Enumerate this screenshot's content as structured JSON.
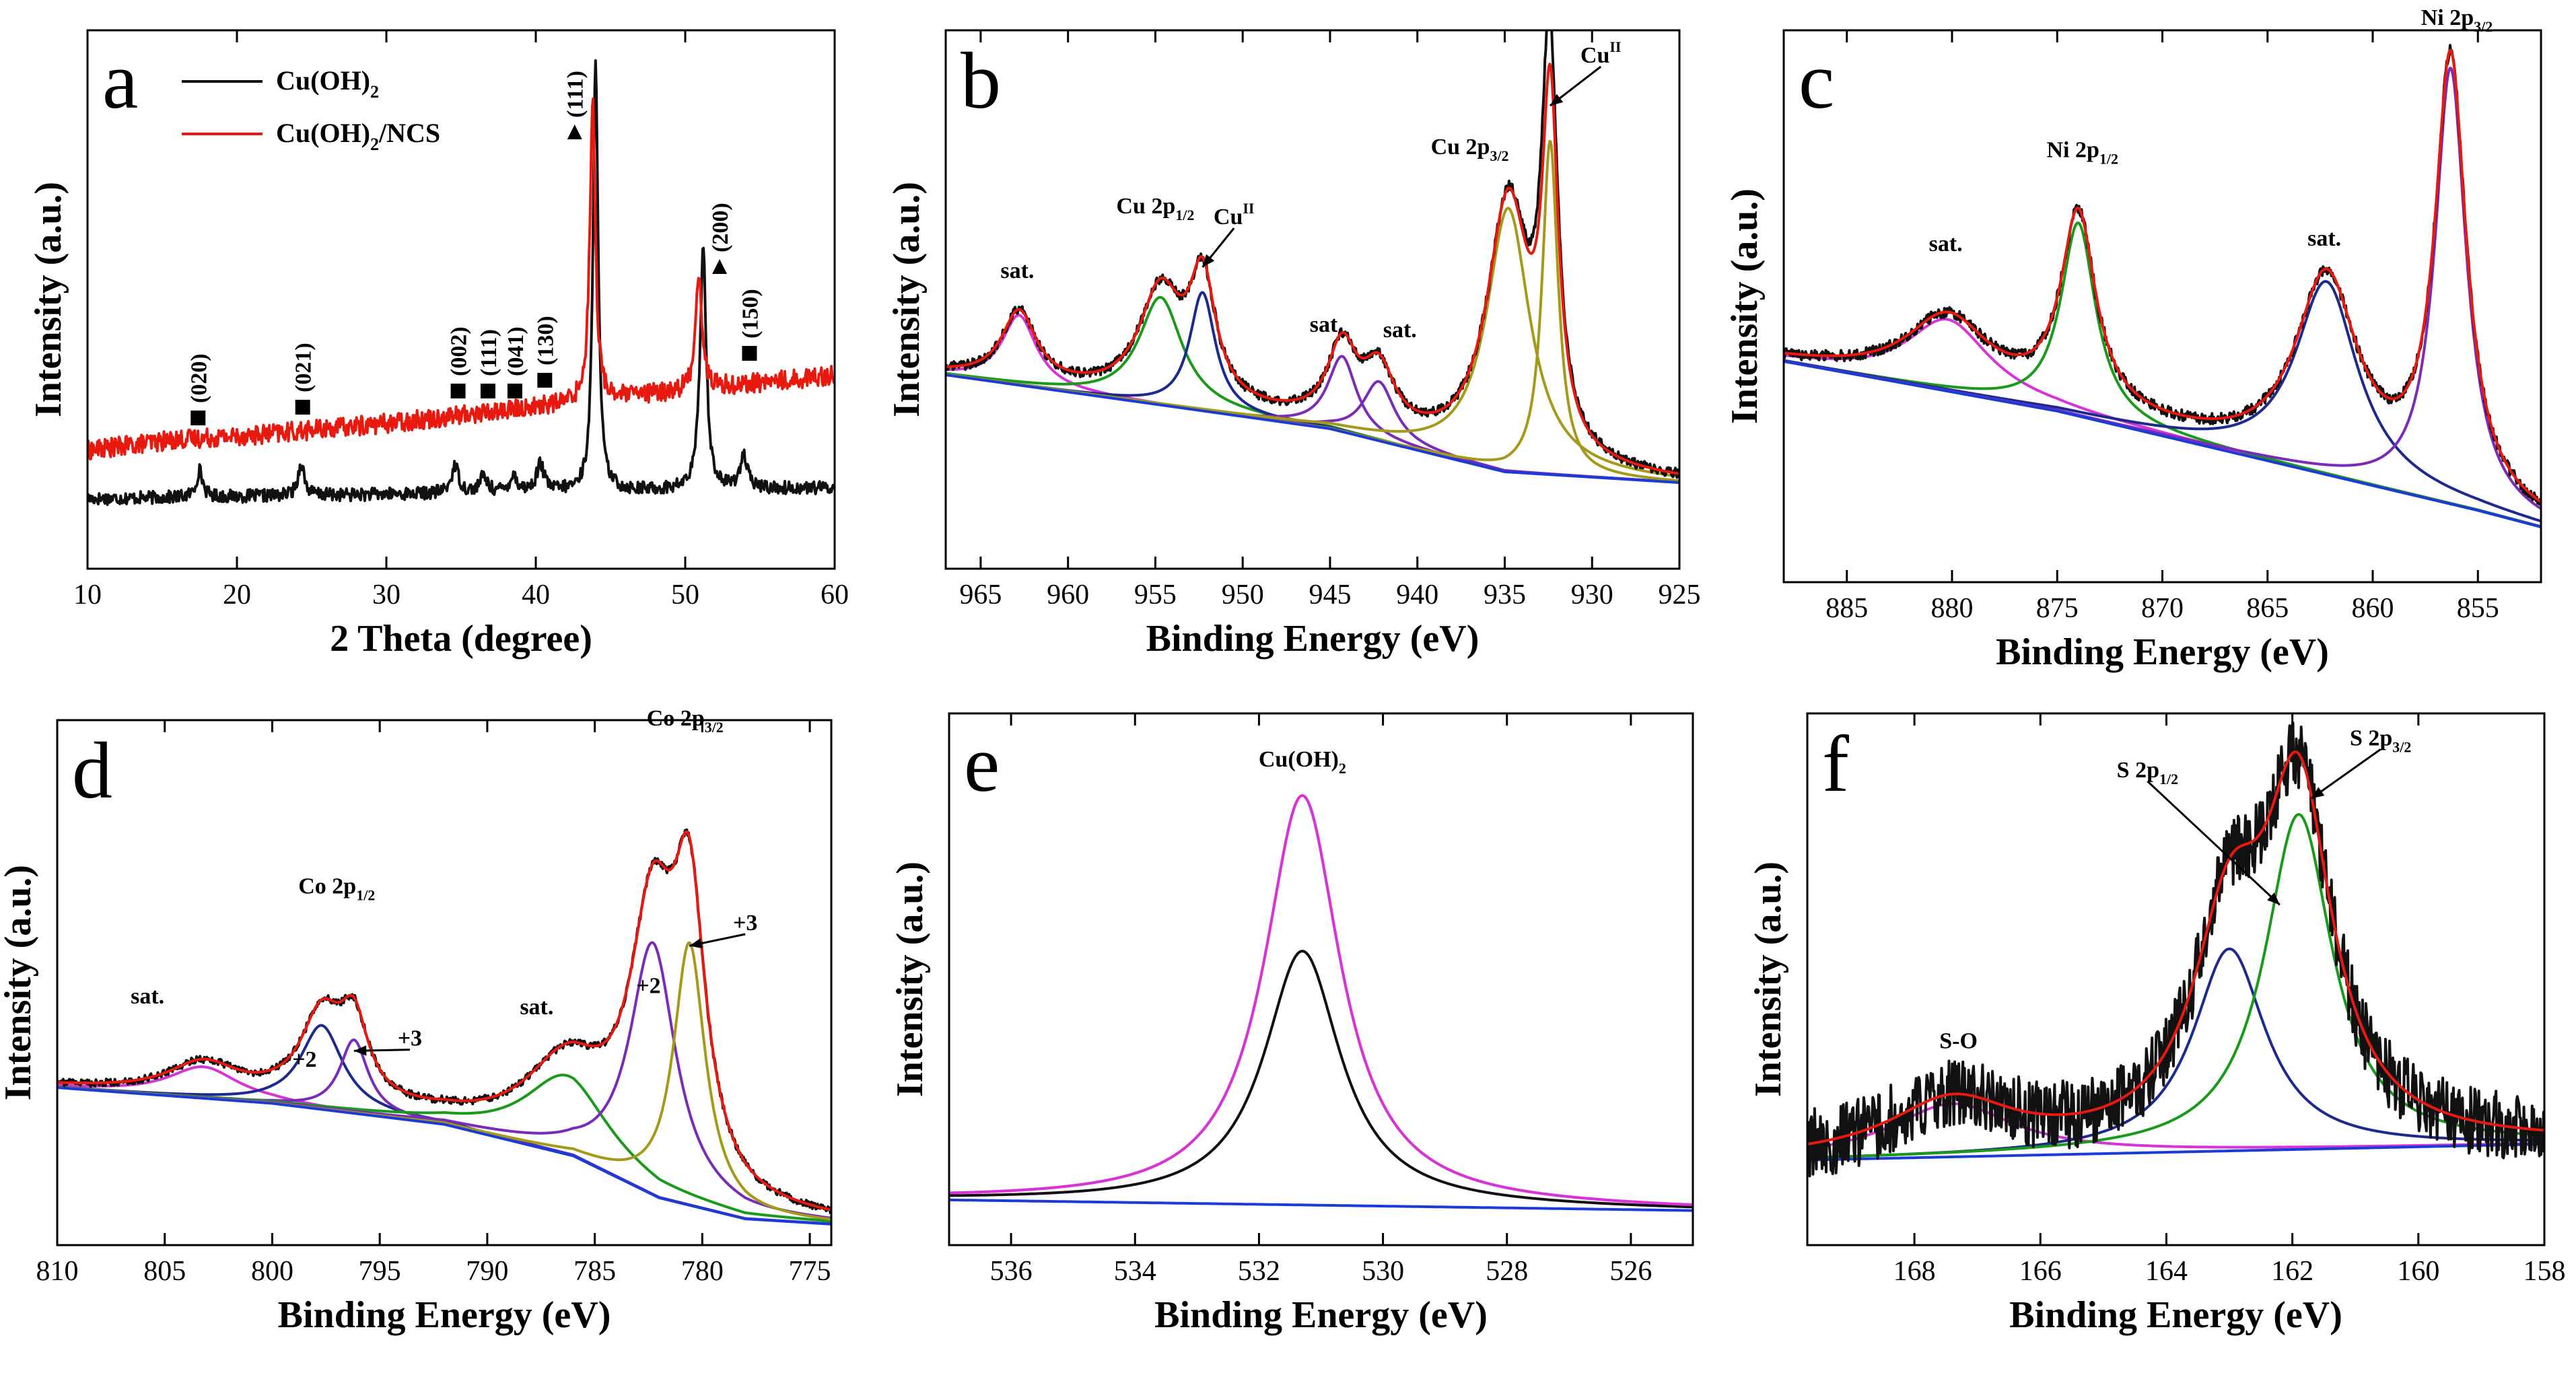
{
  "colors": {
    "black": "#111111",
    "red": "#e8190f",
    "green": "#1a9a1a",
    "navy": "#1c2a8f",
    "magenta": "#d634d6",
    "purple": "#7a2bb8",
    "olive": "#a39a1a",
    "blue": "#1a3bd6"
  },
  "chart_data": [
    {
      "id": "a",
      "type": "line",
      "panel_label": "a",
      "xlabel": "2 Theta (degree)",
      "ylabel": "Intensity (a.u.)",
      "xlim": [
        10,
        60
      ],
      "ylim": [
        0,
        100
      ],
      "x_reversed": false,
      "xticks": [
        10,
        20,
        30,
        40,
        50,
        60
      ],
      "legend": [
        "Cu(OH)2",
        "Cu(OH)2/NCS"
      ],
      "legend_display": [
        [
          "Cu(OH)",
          "2",
          ""
        ],
        [
          "Cu(OH)",
          "2",
          "/NCS"
        ]
      ],
      "series": [
        {
          "name": "Cu(OH)2",
          "color": "black",
          "noise": 1.2,
          "baseline": [
            [
              10,
              13
            ],
            [
              60,
              15
            ]
          ],
          "peaks": [
            [
              17.5,
              5,
              0.25
            ],
            [
              24.3,
              6,
              0.25
            ],
            [
              34.6,
              5,
              0.3
            ],
            [
              36.5,
              3,
              0.3
            ],
            [
              38.5,
              3,
              0.3
            ],
            [
              40.3,
              5,
              0.3
            ],
            [
              44.0,
              81,
              0.2
            ],
            [
              51.2,
              45,
              0.25
            ],
            [
              53.9,
              6,
              0.3
            ]
          ]
        },
        {
          "name": "Cu(OH)2/NCS",
          "color": "red",
          "noise": 1.8,
          "baseline": [
            [
              10,
              22
            ],
            [
              16,
              24
            ],
            [
              22,
              25
            ],
            [
              30,
              27
            ],
            [
              40,
              30
            ],
            [
              50,
              33
            ],
            [
              60,
              36
            ]
          ],
          "peaks": [
            [
              43.8,
              56,
              0.22
            ],
            [
              50.9,
              22,
              0.25
            ]
          ]
        }
      ],
      "annotations": [
        {
          "label": "(020)",
          "x": 17.4,
          "y": 28,
          "marker": "square"
        },
        {
          "label": "(021)",
          "x": 24.4,
          "y": 30,
          "marker": "square"
        },
        {
          "label": "(002)",
          "x": 34.8,
          "y": 33,
          "marker": "square"
        },
        {
          "label": "(111)",
          "x": 36.8,
          "y": 33,
          "marker": "square"
        },
        {
          "label": "(041)",
          "x": 38.6,
          "y": 33,
          "marker": "square"
        },
        {
          "label": "(130)",
          "x": 40.6,
          "y": 35,
          "marker": "square"
        },
        {
          "label": "(111)",
          "x": 42.6,
          "y": 81,
          "marker": "triangle"
        },
        {
          "label": "(200)",
          "x": 52.3,
          "y": 56,
          "marker": "triangle"
        },
        {
          "label": "(150)",
          "x": 54.3,
          "y": 40,
          "marker": "square"
        }
      ]
    },
    {
      "id": "b",
      "type": "line",
      "panel_label": "b",
      "xlabel": "Binding Energy (eV)",
      "ylabel": "Intensity (a.u.)",
      "xlim": [
        967,
        925
      ],
      "ylim": [
        0,
        100
      ],
      "x_reversed": true,
      "xticks": [
        965,
        960,
        955,
        950,
        945,
        940,
        935,
        930,
        925
      ],
      "background": [
        [
          967,
          36
        ],
        [
          945,
          26
        ],
        [
          935,
          18
        ],
        [
          925,
          16
        ]
      ],
      "components": [
        {
          "name": "sat.",
          "color": "magenta",
          "peaks": [
            [
              962.8,
              13,
              1.2
            ]
          ]
        },
        {
          "name": "Cu 2p1/2",
          "color": "green",
          "peaks": [
            [
              954.7,
              20,
              1.5
            ]
          ]
        },
        {
          "name": "CuII 2p1/2",
          "color": "navy",
          "peaks": [
            [
              952.3,
              22,
              0.9
            ]
          ]
        },
        {
          "name": "sat. 944",
          "color": "purple",
          "peaks": [
            [
              944.3,
              14,
              1.0
            ]
          ]
        },
        {
          "name": "sat. 942",
          "color": "purple",
          "peaks": [
            [
              942.2,
              11,
              1.1
            ]
          ]
        },
        {
          "name": "Cu 2p3/2",
          "color": "olive",
          "peaks": [
            [
              934.8,
              49,
              1.5
            ]
          ]
        },
        {
          "name": "CuII 2p3/2",
          "color": "olive",
          "peaks": [
            [
              932.4,
              62,
              0.55
            ]
          ]
        }
      ],
      "envelope_color": "red",
      "raw_color": "black",
      "raw_noise": 0.9,
      "raw_peak_boost": [
        [
          932.6,
          12,
          0.45
        ]
      ],
      "annotations": [
        {
          "label": "sat.",
          "sub": "",
          "x": 962.9,
          "y": 54
        },
        {
          "label": "Cu 2p",
          "sub": "1/2",
          "x": 955.0,
          "y": 66
        },
        {
          "label": "Cu",
          "sup": "II",
          "x": 950.5,
          "y": 64,
          "arrow_to": [
            952.3,
            56
          ]
        },
        {
          "label": "sat.",
          "sub": "",
          "x": 945.2,
          "y": 44
        },
        {
          "label": "sat.",
          "sub": "",
          "x": 941.0,
          "y": 43
        },
        {
          "label": "Cu 2p",
          "sub": "3/2",
          "x": 937.0,
          "y": 77
        },
        {
          "label": "Cu",
          "sup": "II",
          "x": 929.5,
          "y": 94,
          "arrow_to": [
            932.4,
            86
          ]
        }
      ]
    },
    {
      "id": "c",
      "type": "line",
      "panel_label": "c",
      "xlabel": "Binding Energy (eV)",
      "ylabel": "Intensity (a.u.)",
      "xlim": [
        888,
        852
      ],
      "ylim": [
        0,
        100
      ],
      "x_reversed": true,
      "xticks": [
        885,
        880,
        875,
        870,
        865,
        860,
        855
      ],
      "background": [
        [
          888,
          40
        ],
        [
          875,
          31
        ],
        [
          865,
          22
        ],
        [
          855,
          13
        ],
        [
          852,
          10
        ]
      ],
      "components": [
        {
          "name": "sat.",
          "color": "magenta",
          "peaks": [
            [
              880.2,
              13,
              2.4
            ]
          ]
        },
        {
          "name": "Ni 2p1/2",
          "color": "green",
          "peaks": [
            [
              874.0,
              35,
              1.0
            ]
          ]
        },
        {
          "name": "sat.",
          "color": "navy",
          "peaks": [
            [
              862.2,
              35,
              1.8
            ]
          ]
        },
        {
          "name": "Ni 2p3/2",
          "color": "purple",
          "peaks": [
            [
              856.3,
              79,
              0.9
            ]
          ]
        }
      ],
      "envelope_color": "red",
      "raw_color": "black",
      "raw_noise": 1.0,
      "annotations": [
        {
          "label": "sat.",
          "sub": "",
          "x": 880.3,
          "y": 60
        },
        {
          "label": "Ni 2p",
          "sub": "1/2",
          "x": 873.8,
          "y": 77
        },
        {
          "label": "sat.",
          "sub": "",
          "x": 862.3,
          "y": 61
        },
        {
          "label": "Ni 2p",
          "sub": "3/2",
          "x": 856.0,
          "y": 101
        }
      ]
    },
    {
      "id": "d",
      "type": "line",
      "panel_label": "d",
      "xlabel": "Binding Energy (eV)",
      "ylabel": "Intensity (a.u.)",
      "xlim": [
        810,
        774
      ],
      "ylim": [
        0,
        100
      ],
      "x_reversed": true,
      "xticks": [
        810,
        805,
        800,
        795,
        790,
        785,
        780,
        775
      ],
      "background": [
        [
          810,
          30
        ],
        [
          800,
          27
        ],
        [
          792,
          23
        ],
        [
          786,
          17
        ],
        [
          782,
          9
        ],
        [
          778,
          5
        ],
        [
          774,
          4
        ]
      ],
      "components": [
        {
          "name": "sat.",
          "color": "magenta",
          "peaks": [
            [
              803.2,
              6,
              2.0
            ]
          ]
        },
        {
          "name": "Co 2p1/2 +2",
          "color": "navy",
          "peaks": [
            [
              797.7,
              16,
              1.2
            ]
          ]
        },
        {
          "name": "Co 2p1/2 +3",
          "color": "purple",
          "peaks": [
            [
              796.2,
              14,
              0.8
            ]
          ]
        },
        {
          "name": "sat.",
          "color": "green",
          "peaks": [
            [
              786.3,
              15,
              2.4
            ]
          ]
        },
        {
          "name": "Co 2p3/2 +2",
          "color": "purple",
          "peaks": [
            [
              782.3,
              48,
              1.3
            ]
          ]
        },
        {
          "name": "Co 2p3/2 +3",
          "color": "olive",
          "peaks": [
            [
              780.6,
              50,
              0.9
            ]
          ]
        }
      ],
      "envelope_color": "red",
      "raw_color": "black",
      "raw_noise": 0.7,
      "annotations": [
        {
          "label": "sat.",
          "sub": "",
          "x": 805.8,
          "y": 46
        },
        {
          "label": "Co 2p",
          "sub": "1/2",
          "x": 797.0,
          "y": 67
        },
        {
          "label": "+2",
          "sub": "",
          "x": 798.5,
          "y": 34
        },
        {
          "label": "+3",
          "sub": "",
          "x": 793.6,
          "y": 38,
          "arrow_to": [
            796.2,
            37
          ]
        },
        {
          "label": "sat.",
          "sub": "",
          "x": 787.7,
          "y": 44
        },
        {
          "label": "+2",
          "sub": "",
          "x": 782.5,
          "y": 48
        },
        {
          "label": "+3",
          "sub": "",
          "x": 778.0,
          "y": 60,
          "arrow_to": [
            780.6,
            57
          ]
        },
        {
          "label": "Co 2p",
          "sub": "3/2",
          "x": 780.8,
          "y": 99
        }
      ]
    },
    {
      "id": "e",
      "type": "line",
      "panel_label": "e",
      "xlabel": "Binding Energy (eV)",
      "ylabel": "Intensity (a.u.)",
      "xlim": [
        537,
        525
      ],
      "ylim": [
        0,
        100
      ],
      "x_reversed": true,
      "xticks": [
        536,
        534,
        532,
        530,
        528,
        526
      ],
      "background": [
        [
          537,
          8.5
        ],
        [
          531,
          7.5
        ],
        [
          525,
          6.5
        ]
      ],
      "components": [
        {
          "name": "Cu(OH)2",
          "color": "magenta",
          "peaks": [
            [
              531.3,
              77,
              0.75
            ]
          ]
        }
      ],
      "envelope_color": "magenta",
      "raw_color": "black",
      "raw_noise": 0.0,
      "raw_shrink": 0.62,
      "annotations": [
        {
          "label": "Cu(OH)",
          "sub": "2",
          "x": 531.3,
          "y": 90
        }
      ]
    },
    {
      "id": "f",
      "type": "line",
      "panel_label": "f",
      "xlabel": "Binding Energy (eV)",
      "ylabel": "Intensity (a.u.)",
      "xlim": [
        169.7,
        158
      ],
      "ylim": [
        0,
        100
      ],
      "x_reversed": true,
      "xticks": [
        168,
        166,
        164,
        162,
        160,
        158
      ],
      "background": [
        [
          169.7,
          16
        ],
        [
          158,
          19
        ]
      ],
      "components": [
        {
          "name": "S-O",
          "color": "magenta",
          "peaks": [
            [
              167.4,
              10,
              1.2
            ]
          ]
        },
        {
          "name": "S 2p1/2",
          "color": "navy",
          "peaks": [
            [
              163.0,
              38,
              0.7
            ]
          ]
        },
        {
          "name": "S 2p3/2",
          "color": "green",
          "peaks": [
            [
              161.9,
              63,
              0.65
            ]
          ]
        }
      ],
      "envelope_color": "red",
      "raw_color": "black",
      "raw_noise": 6.5,
      "annotations": [
        {
          "label": "S-O",
          "sub": "",
          "x": 167.3,
          "y": 37
        },
        {
          "label": "S 2p",
          "sub": "1/2",
          "x": 164.3,
          "y": 88,
          "arrow_to": [
            162.2,
            64
          ]
        },
        {
          "label": "S 2p",
          "sub": "3/2",
          "x": 160.6,
          "y": 94,
          "arrow_to": [
            161.7,
            84
          ]
        }
      ]
    }
  ]
}
